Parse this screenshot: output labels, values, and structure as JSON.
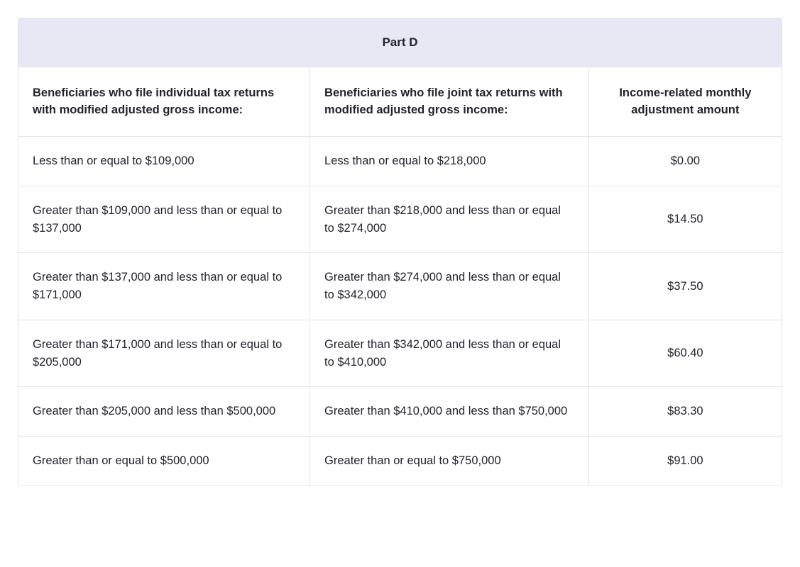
{
  "table": {
    "title": "Part D",
    "columns": [
      "Beneficiaries who file individual tax returns with modified adjusted gross income:",
      "Beneficiaries who file joint tax returns with modified adjusted gross income:",
      "Income-related monthly adjustment amount"
    ],
    "rows": [
      [
        "Less than or equal to $109,000",
        "Less than or equal to $218,000",
        "$0.00"
      ],
      [
        "Greater than $109,000 and less than or equal to $137,000",
        "Greater than $218,000 and less than or equal to $274,000",
        "$14.50"
      ],
      [
        "Greater than $137,000 and less than or equal to $171,000",
        "Greater than $274,000 and less than or equal to $342,000",
        "$37.50"
      ],
      [
        "Greater than $171,000 and less than or equal to $205,000",
        "Greater than $342,000 and less than or equal to $410,000",
        "$60.40"
      ],
      [
        "Greater than $205,000 and less than $500,000",
        "Greater than $410,000 and less than $750,000",
        "$83.30"
      ],
      [
        "Greater than or equal to $500,000",
        "Greater than or equal to $750,000",
        "$91.00"
      ]
    ]
  },
  "colors": {
    "title_background": "#e8e8f4",
    "border": "#e4e4ea",
    "text": "#21232d"
  }
}
